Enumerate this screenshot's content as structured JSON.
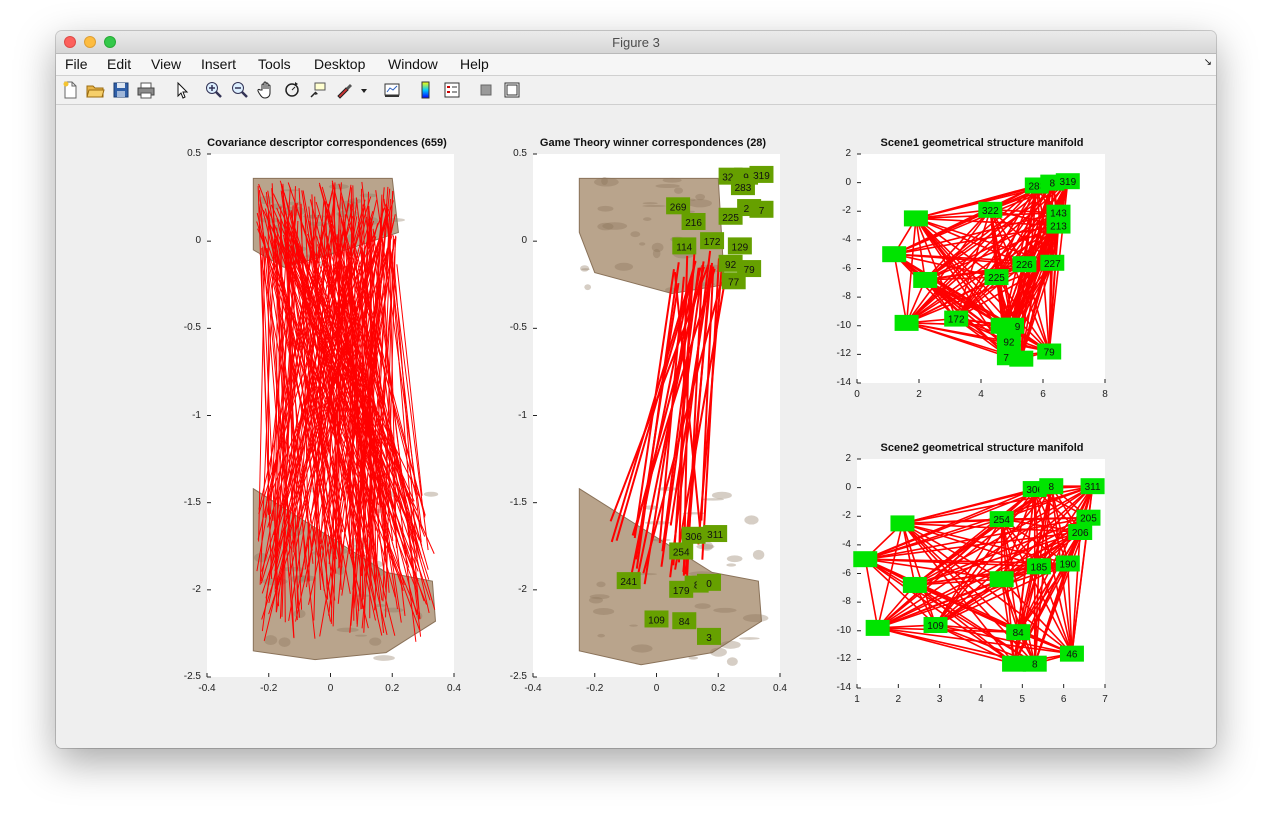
{
  "window": {
    "title": "Figure 3"
  },
  "menu": [
    "File",
    "Edit",
    "View",
    "Insert",
    "Tools",
    "Desktop",
    "Window",
    "Help"
  ],
  "toolbar": [
    {
      "icon": "new-figure-icon"
    },
    {
      "icon": "open-file-icon"
    },
    {
      "icon": "save-icon"
    },
    {
      "icon": "print-icon"
    },
    {
      "icon": "edit-plot-arrow-icon"
    },
    {
      "icon": "zoom-in-icon"
    },
    {
      "icon": "zoom-out-icon"
    },
    {
      "icon": "pan-hand-icon"
    },
    {
      "icon": "rotate-3d-icon"
    },
    {
      "icon": "data-cursor-icon"
    },
    {
      "icon": "brush-icon"
    },
    {
      "icon": "brush-dropdown-icon"
    },
    {
      "icon": "link-plot-icon"
    },
    {
      "icon": "insert-colorbar-icon"
    },
    {
      "icon": "insert-legend-icon"
    },
    {
      "icon": "hide-plot-tools-icon"
    },
    {
      "icon": "show-plot-tools-icon"
    }
  ],
  "colors": {
    "line": "#ff0000",
    "marker": "#00e400",
    "marker_dark": "#66a000",
    "rock": "#b9a48c",
    "rock_dark": "#8a7259"
  },
  "chart_data": [
    {
      "type": "scatter",
      "title": "Covariance descriptor correspondences (659)",
      "xlim": [
        -0.4,
        0.4
      ],
      "ylim": [
        -2.5,
        0.5
      ],
      "xticks": [
        "-0.4",
        "-0.2",
        "0",
        "0.2",
        "0.4"
      ],
      "yticks": [
        "0.5",
        "0",
        "-0.5",
        "-1",
        "-1.5",
        "-2",
        "-2.5"
      ]
    },
    {
      "type": "scatter",
      "title": "Game Theory winner correspondences (28)",
      "xlim": [
        -0.4,
        0.4
      ],
      "ylim": [
        -2.5,
        0.5
      ],
      "xticks": [
        "-0.4",
        "-0.2",
        "0",
        "0.2",
        "0.4"
      ],
      "yticks": [
        "0.5",
        "0",
        "-0.5",
        "-1",
        "-1.5",
        "-2",
        "-2.5"
      ],
      "labels_top": [
        {
          "t": "322",
          "x": 0.24,
          "y": 0.37
        },
        {
          "t": "9",
          "x": 0.29,
          "y": 0.37
        },
        {
          "t": "319",
          "x": 0.34,
          "y": 0.38
        },
        {
          "t": "283",
          "x": 0.28,
          "y": 0.31
        },
        {
          "t": "269",
          "x": 0.07,
          "y": 0.2
        },
        {
          "t": "26",
          "x": 0.3,
          "y": 0.19
        },
        {
          "t": "7",
          "x": 0.34,
          "y": 0.18
        },
        {
          "t": "216",
          "x": 0.12,
          "y": 0.11
        },
        {
          "t": "225",
          "x": 0.24,
          "y": 0.14
        },
        {
          "t": "114",
          "x": 0.09,
          "y": -0.03
        },
        {
          "t": "172",
          "x": 0.18,
          "y": 0.0
        },
        {
          "t": "129",
          "x": 0.27,
          "y": -0.03
        },
        {
          "t": "92",
          "x": 0.24,
          "y": -0.13
        },
        {
          "t": "79",
          "x": 0.3,
          "y": -0.16
        },
        {
          "t": "77",
          "x": 0.25,
          "y": -0.23
        }
      ],
      "labels_bottom": [
        {
          "t": "306",
          "x": 0.12,
          "y": -1.69
        },
        {
          "t": "311",
          "x": 0.19,
          "y": -1.68
        },
        {
          "t": "254",
          "x": 0.08,
          "y": -1.78
        },
        {
          "t": "241",
          "x": -0.09,
          "y": -1.95
        },
        {
          "t": "185",
          "x": 0.13,
          "y": -1.97
        },
        {
          "t": "179",
          "x": 0.08,
          "y": -2.0
        },
        {
          "t": "0",
          "x": 0.17,
          "y": -1.96
        },
        {
          "t": "109",
          "x": 0.0,
          "y": -2.17
        },
        {
          "t": "84",
          "x": 0.09,
          "y": -2.18
        },
        {
          "t": "3",
          "x": 0.17,
          "y": -2.27
        }
      ]
    },
    {
      "type": "scatter",
      "title": "Scene1 geometrical structure manifold",
      "xlim": [
        0,
        8
      ],
      "ylim": [
        -14,
        2
      ],
      "xticks": [
        "0",
        "2",
        "4",
        "6",
        "8"
      ],
      "yticks": [
        "2",
        "0",
        "-2",
        "-4",
        "-6",
        "-8",
        "-10",
        "-12",
        "-14"
      ],
      "labels": [
        {
          "t": "322",
          "x": 4.3,
          "y": -1.9
        },
        {
          "t": "283",
          "x": 5.8,
          "y": -0.2
        },
        {
          "t": "8",
          "x": 6.3,
          "y": 0.0
        },
        {
          "t": "319",
          "x": 6.8,
          "y": 0.1
        },
        {
          "t": "143",
          "x": 6.5,
          "y": -2.1
        },
        {
          "t": "213",
          "x": 6.5,
          "y": -3.0
        },
        {
          "t": "226",
          "x": 5.4,
          "y": -5.7
        },
        {
          "t": "227",
          "x": 6.3,
          "y": -5.6
        },
        {
          "t": "225",
          "x": 4.5,
          "y": -6.6
        },
        {
          "t": "172",
          "x": 3.2,
          "y": -9.5
        },
        {
          "t": "129",
          "x": 5.0,
          "y": -10.0
        },
        {
          "t": "92",
          "x": 4.9,
          "y": -11.1
        },
        {
          "t": "79",
          "x": 6.2,
          "y": -11.8
        },
        {
          "t": "77",
          "x": 4.9,
          "y": -12.2
        },
        {
          "t": "",
          "x": 1.9,
          "y": -2.5
        },
        {
          "t": "",
          "x": 1.2,
          "y": -5.0
        },
        {
          "t": "",
          "x": 1.6,
          "y": -9.8
        },
        {
          "t": "",
          "x": 2.2,
          "y": -6.8
        },
        {
          "t": "",
          "x": 5.3,
          "y": -12.3
        },
        {
          "t": "",
          "x": 4.7,
          "y": -10.0
        }
      ]
    },
    {
      "type": "scatter",
      "title": "Scene2 geometrical structure manifold",
      "xlim": [
        1,
        7
      ],
      "ylim": [
        -14,
        2
      ],
      "xticks": [
        "1",
        "2",
        "3",
        "4",
        "5",
        "6",
        "7"
      ],
      "yticks": [
        "2",
        "0",
        "-2",
        "-4",
        "-6",
        "-8",
        "-10",
        "-12",
        "-14"
      ],
      "labels": [
        {
          "t": "306",
          "x": 5.3,
          "y": -0.1
        },
        {
          "t": "8",
          "x": 5.7,
          "y": 0.1
        },
        {
          "t": "311",
          "x": 6.7,
          "y": 0.1
        },
        {
          "t": "254",
          "x": 4.5,
          "y": -2.2
        },
        {
          "t": "205",
          "x": 6.6,
          "y": -2.1
        },
        {
          "t": "206",
          "x": 6.4,
          "y": -3.1
        },
        {
          "t": "185",
          "x": 5.4,
          "y": -5.5
        },
        {
          "t": "190",
          "x": 6.1,
          "y": -5.3
        },
        {
          "t": "109",
          "x": 2.9,
          "y": -9.6
        },
        {
          "t": "84",
          "x": 4.9,
          "y": -10.1
        },
        {
          "t": "46",
          "x": 6.2,
          "y": -11.6
        },
        {
          "t": "8",
          "x": 5.3,
          "y": -12.3
        },
        {
          "t": "",
          "x": 2.1,
          "y": -2.5
        },
        {
          "t": "",
          "x": 1.2,
          "y": -5.0
        },
        {
          "t": "",
          "x": 1.5,
          "y": -9.8
        },
        {
          "t": "",
          "x": 2.4,
          "y": -6.8
        },
        {
          "t": "",
          "x": 4.5,
          "y": -6.4
        },
        {
          "t": "",
          "x": 4.8,
          "y": -12.3
        }
      ]
    }
  ]
}
